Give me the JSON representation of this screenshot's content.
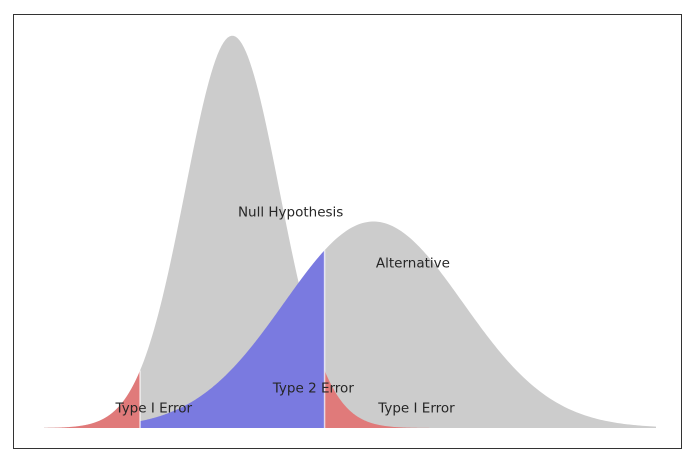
{
  "chart_data": {
    "type": "area",
    "title": "",
    "xlabel": "",
    "ylabel": "",
    "axes_visible": false,
    "grid": false,
    "xlim": [
      -4,
      9
    ],
    "ylim": [
      0,
      0.42
    ],
    "critical_values": {
      "lower": -1.96,
      "upper": 1.96
    },
    "series": [
      {
        "name": "Null Hypothesis",
        "distribution": "normal",
        "mean": 0,
        "sd": 1,
        "color": "#cccccc"
      },
      {
        "name": "Alternative",
        "distribution": "normal",
        "mean": 3,
        "sd": 1.9,
        "color": "#cccccc"
      }
    ],
    "regions": [
      {
        "label": "Type I Error",
        "series": "Null Hypothesis",
        "from": -4,
        "to": -1.96,
        "color": "#ff0000",
        "opacity": 0.4
      },
      {
        "label": "Type I Error",
        "series": "Null Hypothesis",
        "from": 1.96,
        "to": 9,
        "color": "#ff0000",
        "opacity": 0.4
      },
      {
        "label": "Type 2 Error",
        "series": "Alternative",
        "from": -1.96,
        "to": 1.96,
        "color": "#0000ff",
        "opacity": 0.4
      }
    ],
    "annotations": [
      {
        "text": "Null Hypothesis",
        "x": 0.12,
        "y": 0.215
      },
      {
        "text": "Alternative",
        "x": 3.05,
        "y": 0.163
      },
      {
        "text": "Type I Error",
        "x": -2.48,
        "y": 0.016
      },
      {
        "text": "Type 2 Error",
        "x": 0.86,
        "y": 0.036
      },
      {
        "text": "Type I Error",
        "x": 3.1,
        "y": 0.016
      }
    ]
  }
}
